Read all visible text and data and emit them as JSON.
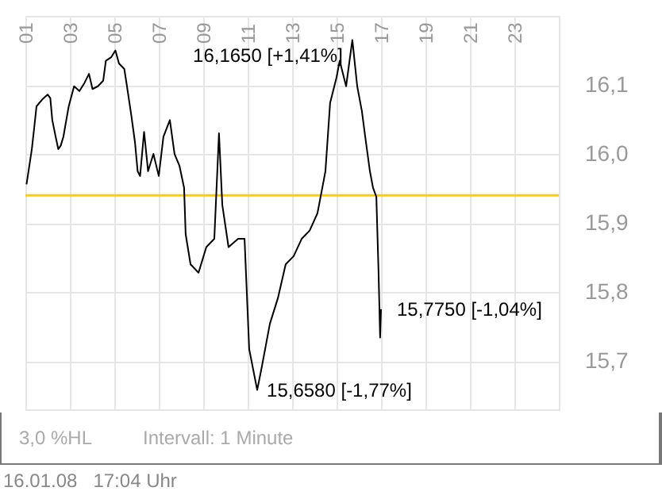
{
  "chart_data": {
    "type": "line",
    "x": [
      1.05,
      1.14,
      1.29,
      1.41,
      1.5,
      1.76,
      2.0,
      2.12,
      2.21,
      2.36,
      2.48,
      2.59,
      2.71,
      2.84,
      2.95,
      3.19,
      3.43,
      3.66,
      3.86,
      4.02,
      4.26,
      4.5,
      4.62,
      4.86,
      5.05,
      5.21,
      5.45,
      5.57,
      5.76,
      5.93,
      6.05,
      6.16,
      6.34,
      6.52,
      6.76,
      7.0,
      7.21,
      7.5,
      7.71,
      7.93,
      8.14,
      8.21,
      8.43,
      8.79,
      9.14,
      9.5,
      9.71,
      9.86,
      10.14,
      10.57,
      10.86,
      11.07,
      11.43,
      11.64,
      12.0,
      12.36,
      12.71,
      13.07,
      13.43,
      13.79,
      14.14,
      14.36,
      14.5,
      14.71,
      15.0,
      15.14,
      15.43,
      15.71,
      15.93,
      16.14,
      16.29,
      16.5,
      16.64,
      16.79,
      16.89,
      16.96,
      17.0
    ],
    "series": [
      {
        "color": "#000000",
        "values": [
          15.956,
          15.975,
          16.007,
          16.042,
          16.069,
          16.079,
          16.086,
          16.081,
          16.049,
          16.025,
          16.007,
          16.012,
          16.025,
          16.049,
          16.069,
          16.098,
          16.091,
          16.103,
          16.116,
          16.094,
          16.098,
          16.106,
          16.135,
          16.14,
          16.15,
          16.131,
          16.123,
          16.098,
          16.057,
          16.017,
          15.975,
          15.968,
          16.032,
          15.975,
          16.0,
          15.968,
          16.025,
          16.049,
          16.0,
          15.983,
          15.951,
          15.884,
          15.84,
          15.828,
          15.865,
          15.877,
          16.03,
          15.926,
          15.865,
          15.877,
          15.877,
          15.717,
          15.658,
          15.692,
          15.754,
          15.791,
          15.84,
          15.852,
          15.877,
          15.889,
          15.914,
          15.951,
          15.975,
          16.074,
          16.111,
          16.135,
          16.098,
          16.165,
          16.098,
          16.062,
          16.025,
          15.975,
          15.951,
          15.938,
          15.828,
          15.734,
          15.775
        ]
      }
    ],
    "xlim": [
      1,
      25
    ],
    "xticks": [
      {
        "value": 1,
        "label": "01"
      },
      {
        "value": 3,
        "label": "03"
      },
      {
        "value": 5,
        "label": "05"
      },
      {
        "value": 7,
        "label": "07"
      },
      {
        "value": 9,
        "label": "09"
      },
      {
        "value": 11,
        "label": "11"
      },
      {
        "value": 13,
        "label": "13"
      },
      {
        "value": 15,
        "label": "15"
      },
      {
        "value": 17,
        "label": "17"
      },
      {
        "value": 19,
        "label": "19"
      },
      {
        "value": 21,
        "label": "21"
      },
      {
        "value": 23,
        "label": "23"
      }
    ],
    "ylim": [
      15.63,
      16.2
    ],
    "yticks": [
      {
        "value": 15.7,
        "label": "15,7"
      },
      {
        "value": 15.8,
        "label": "15,8"
      },
      {
        "value": 15.9,
        "label": "15,9"
      },
      {
        "value": 16.0,
        "label": "16,0"
      },
      {
        "value": 16.1,
        "label": "16,1"
      }
    ],
    "grid": true,
    "marker": "none",
    "ref_lines": [
      {
        "axis": "y",
        "value": 15.94,
        "color": "#ffcc00"
      }
    ],
    "annotations": [
      {
        "text": "16,1650 [+1,41%]",
        "x": 15.71,
        "y": 16.165
      },
      {
        "text": "15,6580 [-1,77%]",
        "x": 11.43,
        "y": 15.658
      },
      {
        "text": "15,7750 [-1,04%]",
        "x": 17.0,
        "y": 15.775
      },
      "3,0 %HL",
      "Intervall: 1 Minute",
      "16.01.08   17:04 Uhr"
    ]
  }
}
